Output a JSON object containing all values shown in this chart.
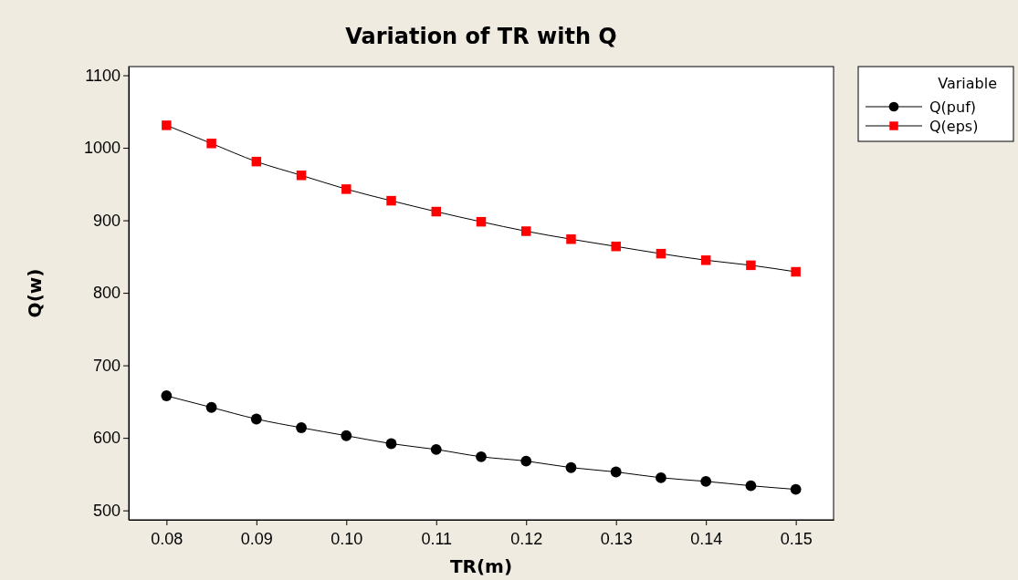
{
  "chart_data": {
    "type": "line",
    "title": "Variation of TR with Q",
    "xlabel": "TR(m)",
    "ylabel": "Q(w)",
    "legend_title": "Variable",
    "legend": "right",
    "line_style": "solid",
    "x": [
      0.08,
      0.085,
      0.09,
      0.095,
      0.1,
      0.105,
      0.11,
      0.115,
      0.12,
      0.125,
      0.13,
      0.135,
      0.14,
      0.145,
      0.15
    ],
    "xlim": [
      0.0758,
      0.1542
    ],
    "xticks": [
      {
        "value": 0.08,
        "label": "0.08"
      },
      {
        "value": 0.09,
        "label": "0.09"
      },
      {
        "value": 0.1,
        "label": "0.10"
      },
      {
        "value": 0.11,
        "label": "0.11"
      },
      {
        "value": 0.12,
        "label": "0.12"
      },
      {
        "value": 0.13,
        "label": "0.13"
      },
      {
        "value": 0.14,
        "label": "0.14"
      },
      {
        "value": 0.15,
        "label": "0.15"
      }
    ],
    "ylim": [
      487,
      1112
    ],
    "yticks": [
      500,
      600,
      700,
      800,
      900,
      1000,
      1100
    ],
    "series": [
      {
        "name": "Q(puf)",
        "color": "#000000",
        "marker": "circle",
        "values": [
          658,
          642,
          626,
          614,
          603,
          592,
          584,
          574,
          568,
          559,
          553,
          545,
          540,
          534,
          529
        ]
      },
      {
        "name": "Q(eps)",
        "color": "#ff0000",
        "marker": "square",
        "values": [
          1031,
          1006,
          981,
          962,
          943,
          927,
          912,
          898,
          885,
          874,
          864,
          854,
          845,
          838,
          829
        ]
      }
    ]
  }
}
